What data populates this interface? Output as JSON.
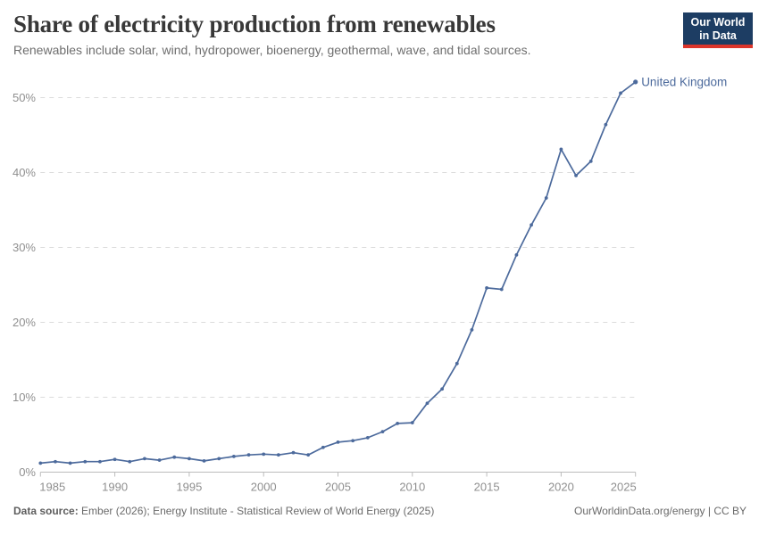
{
  "header": {
    "title": "Share of electricity production from renewables",
    "subtitle": "Renewables include solar, wind, hydropower, bioenergy, geothermal, wave, and tidal sources.",
    "logo": {
      "line1": "Our World",
      "line2": "in Data",
      "bg_color": "#1d3d63",
      "accent_color": "#dc352b"
    }
  },
  "footer": {
    "source_label": "Data source:",
    "source_text": " Ember (2026); Energy Institute - Statistical Review of World Energy (2025)",
    "link_text": "OurWorldinData.org/energy | CC BY"
  },
  "chart_data": {
    "type": "line",
    "title": "Share of electricity production from renewables",
    "xlabel": "",
    "ylabel": "",
    "xlim": [
      1985,
      2025
    ],
    "ylim": [
      0,
      52.5
    ],
    "x_ticks": [
      1985,
      1990,
      1995,
      2000,
      2005,
      2010,
      2015,
      2020,
      2025
    ],
    "y_ticks": [
      0,
      10,
      20,
      30,
      40,
      50
    ],
    "y_tick_suffix": "%",
    "grid": "horizontal-dashed",
    "legend": "end-of-line-label",
    "colors": {
      "series": "#4C6A9C",
      "gridline": "#dcdcdc",
      "axis": "#bcbcbc",
      "tick_label": "#8f8f8f"
    },
    "series": [
      {
        "name": "United Kingdom",
        "color": "#4C6A9C",
        "x": [
          1985,
          1986,
          1987,
          1988,
          1989,
          1990,
          1991,
          1992,
          1993,
          1994,
          1995,
          1996,
          1997,
          1998,
          1999,
          2000,
          2001,
          2002,
          2003,
          2004,
          2005,
          2006,
          2007,
          2008,
          2009,
          2010,
          2011,
          2012,
          2013,
          2014,
          2015,
          2016,
          2017,
          2018,
          2019,
          2020,
          2021,
          2022,
          2023,
          2024,
          2025
        ],
        "values": [
          1.2,
          1.4,
          1.2,
          1.4,
          1.4,
          1.7,
          1.4,
          1.8,
          1.6,
          2.0,
          1.8,
          1.5,
          1.8,
          2.1,
          2.3,
          2.4,
          2.3,
          2.6,
          2.3,
          3.3,
          4.0,
          4.2,
          4.6,
          5.4,
          6.5,
          6.6,
          9.2,
          11.1,
          14.5,
          19.0,
          24.6,
          24.4,
          29.0,
          33.0,
          36.6,
          43.1,
          39.6,
          41.5,
          46.4,
          50.6,
          52.1
        ]
      }
    ]
  }
}
